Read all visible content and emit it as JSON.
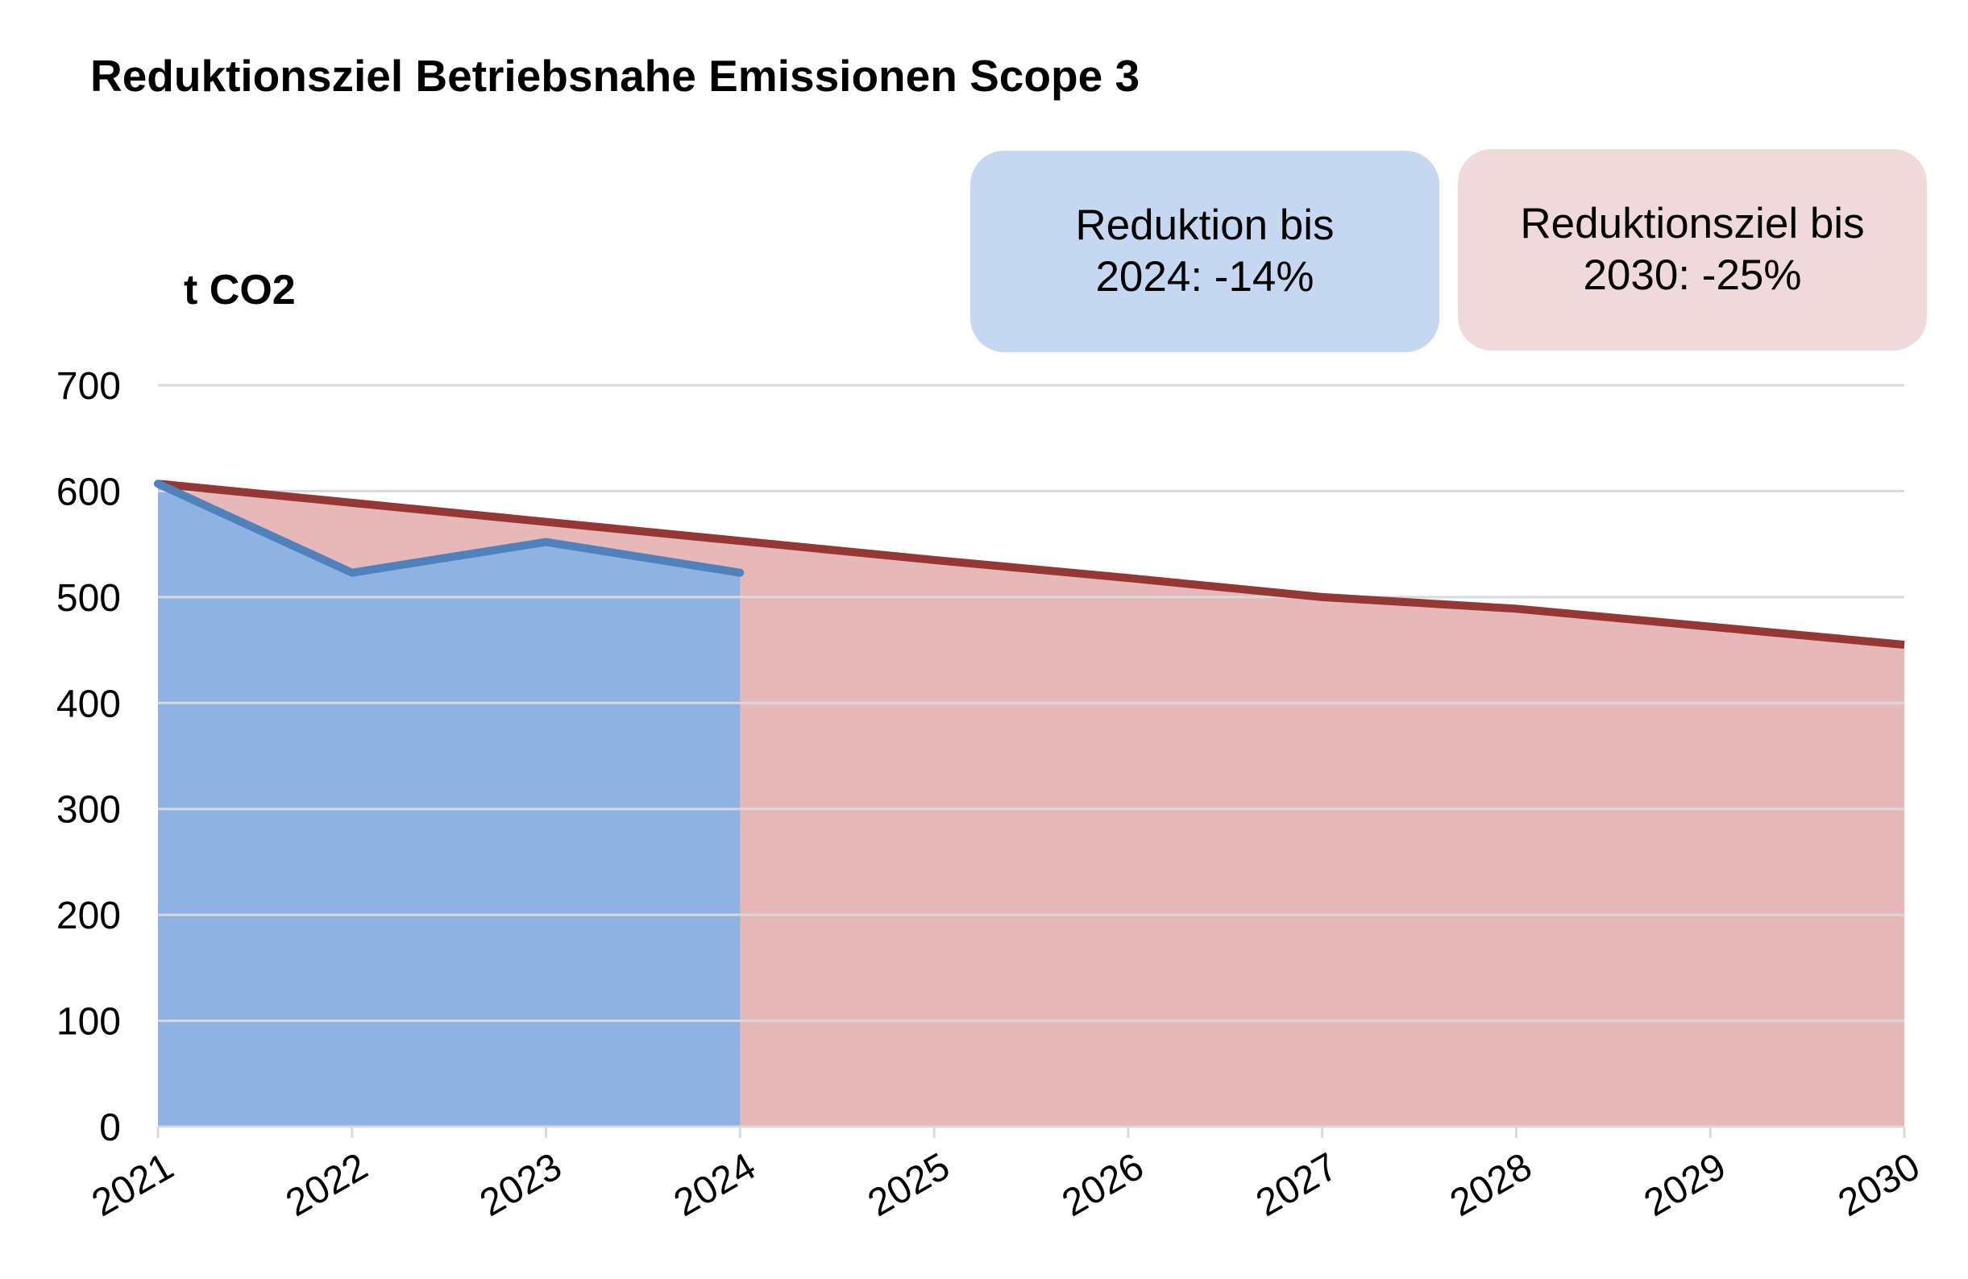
{
  "chart_data": {
    "type": "area",
    "title": "Reduktionsziel Betriebsnahe Emissionen Scope 3",
    "ylabel": "t CO2",
    "xlabel": "",
    "x": [
      "2021",
      "2022",
      "2023",
      "2024",
      "2025",
      "2026",
      "2027",
      "2028",
      "2029",
      "2030"
    ],
    "ylim": [
      0,
      700
    ],
    "yticks": [
      0,
      100,
      200,
      300,
      400,
      500,
      600,
      700
    ],
    "grid": true,
    "series": [
      {
        "key": "actual",
        "values": [
          607,
          523,
          552,
          523,
          null,
          null,
          null,
          null,
          null,
          null
        ],
        "color": "#4f81bd",
        "fill": "#8eb3e2"
      },
      {
        "key": "target",
        "values": [
          607,
          589,
          571,
          553,
          535,
          518,
          500,
          489,
          472,
          455
        ],
        "color": "#953735",
        "fill": "#e6b8b7"
      }
    ],
    "annotations": [
      {
        "key": "actual",
        "lines": [
          "Reduktion bis",
          "2024: -14%"
        ],
        "color": "#c6d8f1"
      },
      {
        "key": "target",
        "lines": [
          "Reduktionsziel bis",
          "2030: -25%"
        ],
        "color": "#f0d9da"
      }
    ]
  }
}
